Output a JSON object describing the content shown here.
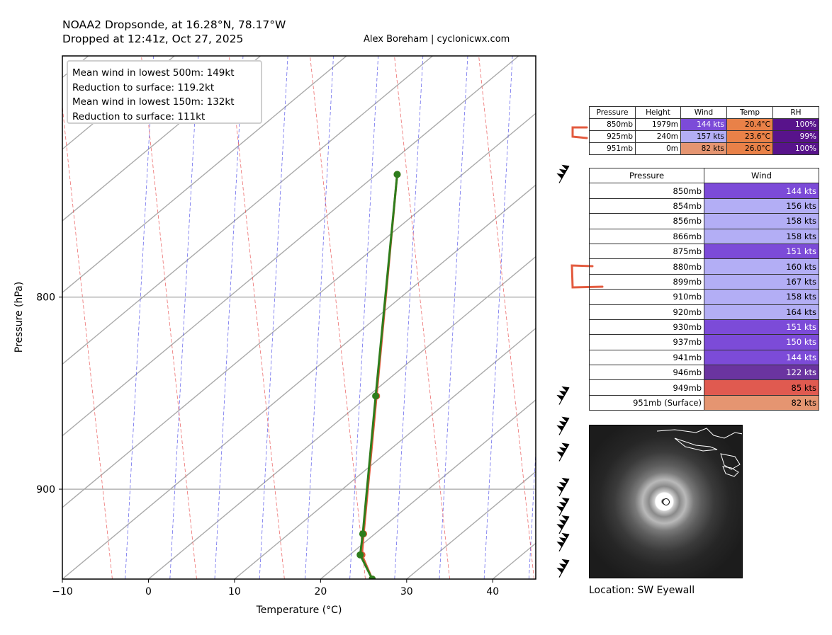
{
  "header": {
    "title_line1": "NOAA2 Dropsonde, at 16.28°N, 78.17°W",
    "title_line2": "Dropped at 12:41z, Oct 27, 2025",
    "credit": "Alex Boreham | cyclonicwx.com"
  },
  "annotation": {
    "line1": "Mean wind in lowest 500m: 149kt",
    "line2": "Reduction to surface: 119.2kt",
    "line3": "Mean wind in lowest 150m:  132kt",
    "line4": "Reduction to surface: 111kt"
  },
  "chart_data": {
    "type": "line",
    "xlabel": "Temperature (°C)",
    "ylabel": "Pressure (hPa)",
    "xlim": [
      -10,
      45
    ],
    "ylim": [
      951,
      690
    ],
    "x_ticks": [
      -10,
      0,
      10,
      20,
      30,
      40
    ],
    "y_ticks": [
      800,
      900
    ],
    "y_scale": "log",
    "grid": "horizontal at 800 and 900 hPa",
    "series": [
      {
        "color": "#e05a3a",
        "points": [
          [
            28.9,
            742
          ],
          [
            26.5,
            850
          ],
          [
            25.0,
            925
          ],
          [
            24.8,
            937
          ],
          [
            26.0,
            951
          ]
        ]
      },
      {
        "color": "#2e7d1c",
        "points": [
          [
            28.9,
            742
          ],
          [
            26.4,
            850
          ],
          [
            24.9,
            925
          ],
          [
            24.6,
            937
          ],
          [
            26.0,
            951
          ]
        ]
      }
    ],
    "barb_levels_hpa": [
      742,
      850,
      866,
      880,
      899,
      910,
      920,
      930,
      945
    ]
  },
  "colors": {
    "purple_dark": "#58138b",
    "purple_mid": "#7c4bd8",
    "lavender": "#b3aef5",
    "violet": "#6a34a0",
    "orange": "#e98148",
    "salmon": "#e59571",
    "red": "#e05a50"
  },
  "table1": {
    "headers": [
      "Pressure",
      "Height",
      "Wind",
      "Temp",
      "RH"
    ],
    "rows": [
      [
        "850mb",
        "1979m",
        "144 kts",
        "20.4°C",
        "100%"
      ],
      [
        "925mb",
        "240m",
        "157 kts",
        "23.6°C",
        "99%"
      ],
      [
        "951mb",
        "0m",
        "82 kts",
        "26.0°C",
        "100%"
      ]
    ]
  },
  "table2": {
    "headers": [
      "Pressure",
      "Wind"
    ],
    "rows": [
      [
        "850mb",
        "144 kts"
      ],
      [
        "854mb",
        "156 kts"
      ],
      [
        "856mb",
        "158 kts"
      ],
      [
        "866mb",
        "158 kts"
      ],
      [
        "875mb",
        "151 kts"
      ],
      [
        "880mb",
        "160 kts"
      ],
      [
        "899mb",
        "167 kts"
      ],
      [
        "910mb",
        "158 kts"
      ],
      [
        "920mb",
        "164 kts"
      ],
      [
        "930mb",
        "151 kts"
      ],
      [
        "937mb",
        "150 kts"
      ],
      [
        "941mb",
        "144 kts"
      ],
      [
        "946mb",
        "122 kts"
      ],
      [
        "949mb",
        "85 kts"
      ],
      [
        "951mb (Surface)",
        "82 kts"
      ]
    ]
  },
  "location": "Location: SW Eyewall"
}
